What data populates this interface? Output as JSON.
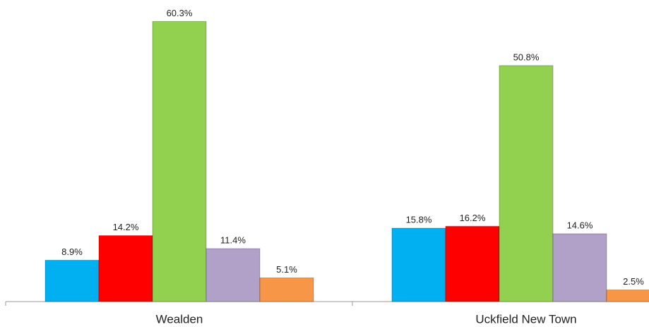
{
  "chart_data": {
    "type": "bar",
    "categories": [
      "Wealden",
      "Uckfield New Town"
    ],
    "series": [
      {
        "color": "#00b0f0",
        "values": [
          8.9,
          15.8
        ],
        "value_labels": [
          "8.9%",
          "15.8%"
        ]
      },
      {
        "color": "#ff0000",
        "values": [
          14.2,
          16.2
        ],
        "value_labels": [
          "14.2%",
          "16.2%"
        ]
      },
      {
        "color": "#92d050",
        "values": [
          60.3,
          50.8
        ],
        "value_labels": [
          "60.3%",
          "50.8%"
        ]
      },
      {
        "color": "#b1a0c7",
        "values": [
          11.4,
          14.6
        ],
        "value_labels": [
          "11.4%",
          "14.6%"
        ]
      },
      {
        "color": "#f79646",
        "values": [
          5.1,
          2.5
        ],
        "value_labels": [
          "5.1%",
          "2.5%"
        ]
      }
    ],
    "ylim": [
      0,
      64
    ]
  }
}
